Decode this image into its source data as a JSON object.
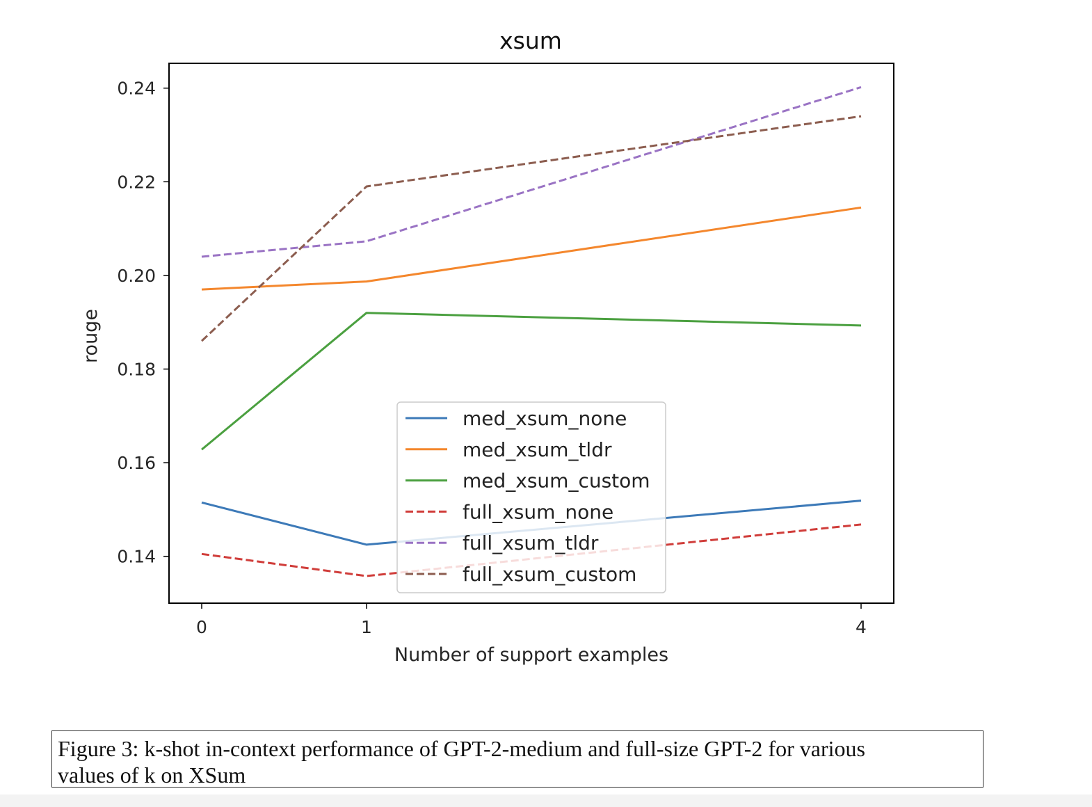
{
  "chart_data": {
    "type": "line",
    "title": "xsum",
    "xlabel": "Number of support examples",
    "ylabel": "rouge",
    "x": [
      0,
      1,
      4
    ],
    "xticks": [
      "0",
      "1",
      "4"
    ],
    "yticks": [
      "0.14",
      "0.16",
      "0.18",
      "0.20",
      "0.22",
      "0.24"
    ],
    "ytick_values": [
      0.14,
      0.16,
      0.18,
      0.2,
      0.22,
      0.24
    ],
    "ylim": [
      0.13,
      0.2453
    ],
    "legend_position": "center",
    "series": [
      {
        "name": "med_xsum_none",
        "values": [
          0.1515,
          0.1425,
          0.1519
        ],
        "color": "#3d7ab8",
        "dash": "solid"
      },
      {
        "name": "med_xsum_tldr",
        "values": [
          0.197,
          0.1987,
          0.2145
        ],
        "color": "#f4872d",
        "dash": "solid"
      },
      {
        "name": "med_xsum_custom",
        "values": [
          0.1628,
          0.192,
          0.1893
        ],
        "color": "#4ba040",
        "dash": "solid"
      },
      {
        "name": "full_xsum_none",
        "values": [
          0.1405,
          0.1358,
          0.1468
        ],
        "color": "#d03d3a",
        "dash": "dashed"
      },
      {
        "name": "full_xsum_tldr",
        "values": [
          0.204,
          0.2073,
          0.2402
        ],
        "color": "#9a73c4",
        "dash": "dashed"
      },
      {
        "name": "full_xsum_custom",
        "values": [
          0.186,
          0.219,
          0.234
        ],
        "color": "#8c5d4f",
        "dash": "dashed"
      }
    ]
  },
  "caption": {
    "line1": "Figure 3: k-shot in-context performance of GPT-2-medium and full-size GPT-2 for various",
    "line2": "values of k on XSum"
  }
}
